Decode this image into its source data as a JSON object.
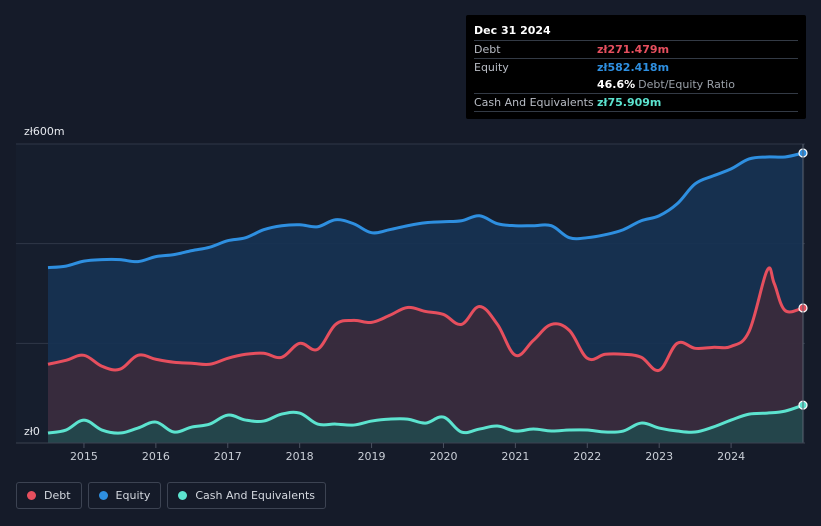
{
  "tooltip": {
    "date": "Dec 31 2024",
    "rows": [
      {
        "label": "Debt",
        "value": "zł271.479m",
        "color": "#e64f5e"
      },
      {
        "label": "Equity",
        "value": "zł582.418m",
        "color": "#2e8fe0"
      },
      {
        "label": "",
        "value": "46.6%",
        "suffix": "Debt/Equity Ratio",
        "color": "#ffffff"
      },
      {
        "label": "Cash And Equivalents",
        "value": "zł75.909m",
        "color": "#5ce3cf"
      }
    ]
  },
  "chart_data": {
    "type": "area",
    "title": "",
    "ylabel": "",
    "xlabel": "",
    "ylim": [
      0,
      600
    ],
    "y_tick_labels": [
      "zł600m",
      "zł0"
    ],
    "x_tick_labels": [
      "2015",
      "2016",
      "2017",
      "2018",
      "2019",
      "2020",
      "2021",
      "2022",
      "2023",
      "2024"
    ],
    "x_range": [
      2014.5,
      2025.0
    ],
    "series": [
      {
        "name": "Equity",
        "color": "#2e8fe0",
        "x": [
          2014.5,
          2014.75,
          2015.0,
          2015.25,
          2015.5,
          2015.75,
          2016.0,
          2016.25,
          2016.5,
          2016.75,
          2017.0,
          2017.25,
          2017.5,
          2017.75,
          2018.0,
          2018.25,
          2018.5,
          2018.75,
          2019.0,
          2019.25,
          2019.5,
          2019.75,
          2020.0,
          2020.25,
          2020.5,
          2020.75,
          2021.0,
          2021.25,
          2021.5,
          2021.75,
          2022.0,
          2022.25,
          2022.5,
          2022.75,
          2023.0,
          2023.25,
          2023.5,
          2023.75,
          2024.0,
          2024.25,
          2024.5,
          2024.75,
          2025.0
        ],
        "values": [
          352,
          355,
          365,
          368,
          368,
          364,
          374,
          378,
          386,
          393,
          406,
          412,
          428,
          436,
          438,
          434,
          448,
          440,
          422,
          428,
          436,
          442,
          444,
          446,
          456,
          440,
          436,
          436,
          436,
          412,
          412,
          418,
          428,
          446,
          456,
          480,
          520,
          536,
          550,
          570,
          574,
          574,
          582
        ]
      },
      {
        "name": "Debt",
        "color": "#e64f5e",
        "x": [
          2014.5,
          2014.75,
          2015.0,
          2015.25,
          2015.5,
          2015.75,
          2016.0,
          2016.25,
          2016.5,
          2016.75,
          2017.0,
          2017.25,
          2017.5,
          2017.75,
          2018.0,
          2018.25,
          2018.5,
          2018.75,
          2019.0,
          2019.25,
          2019.5,
          2019.75,
          2020.0,
          2020.25,
          2020.5,
          2020.75,
          2021.0,
          2021.25,
          2021.5,
          2021.75,
          2022.0,
          2022.25,
          2022.5,
          2022.75,
          2023.0,
          2023.25,
          2023.5,
          2023.75,
          2024.0,
          2024.25,
          2024.5,
          2024.6,
          2024.75,
          2025.0
        ],
        "values": [
          158,
          166,
          176,
          154,
          148,
          176,
          168,
          162,
          160,
          158,
          170,
          178,
          180,
          172,
          200,
          188,
          238,
          246,
          242,
          256,
          272,
          264,
          258,
          238,
          274,
          238,
          176,
          206,
          238,
          226,
          170,
          178,
          178,
          172,
          146,
          200,
          190,
          192,
          194,
          224,
          346,
          320,
          266,
          271
        ]
      },
      {
        "name": "Cash And Equivalents",
        "color": "#5ce3cf",
        "x": [
          2014.5,
          2014.75,
          2015.0,
          2015.25,
          2015.5,
          2015.75,
          2016.0,
          2016.25,
          2016.5,
          2016.75,
          2017.0,
          2017.25,
          2017.5,
          2017.75,
          2018.0,
          2018.25,
          2018.5,
          2018.75,
          2019.0,
          2019.25,
          2019.5,
          2019.75,
          2020.0,
          2020.25,
          2020.5,
          2020.75,
          2021.0,
          2021.25,
          2021.5,
          2021.75,
          2022.0,
          2022.25,
          2022.5,
          2022.75,
          2023.0,
          2023.25,
          2023.5,
          2023.75,
          2024.0,
          2024.25,
          2024.5,
          2024.75,
          2025.0
        ],
        "values": [
          20,
          26,
          46,
          26,
          20,
          30,
          42,
          22,
          32,
          38,
          56,
          46,
          44,
          58,
          60,
          38,
          38,
          36,
          44,
          48,
          48,
          40,
          52,
          22,
          28,
          34,
          24,
          28,
          24,
          26,
          26,
          22,
          24,
          40,
          30,
          24,
          22,
          32,
          46,
          58,
          60,
          64,
          76
        ]
      }
    ],
    "legend": [
      "Debt",
      "Equity",
      "Cash And Equivalents"
    ],
    "legend_position": "bottom-left",
    "highlight_x": 2025.0
  }
}
